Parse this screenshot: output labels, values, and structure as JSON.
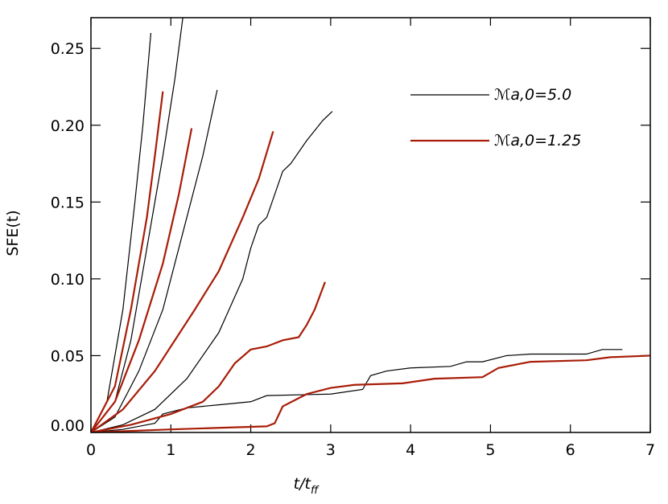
{
  "chart_data": {
    "type": "line",
    "xlabel": "t/t",
    "xlabel_sub": "ff",
    "ylabel": "SFE(t)",
    "xlim": [
      0,
      7
    ],
    "ylim": [
      0,
      0.27
    ],
    "xticks": [
      0,
      1,
      2,
      3,
      4,
      5,
      6,
      7
    ],
    "yticks": [
      {
        "value": 0,
        "label": "0.00"
      },
      {
        "value": 0.05,
        "label": "0.05"
      },
      {
        "value": 0.1,
        "label": "0.10"
      },
      {
        "value": 0.15,
        "label": "0.15"
      },
      {
        "value": 0.2,
        "label": "0.20"
      },
      {
        "value": 0.25,
        "label": "0.25"
      }
    ],
    "series": [
      {
        "name": "ℳa,0=5.0",
        "color": "#000000",
        "curves": [
          {
            "x": [
              0,
              0.2,
              0.4,
              0.55,
              0.65,
              0.75
            ],
            "values": [
              0,
              0.02,
              0.08,
              0.15,
              0.2,
              0.26
            ]
          },
          {
            "x": [
              0,
              0.3,
              0.5,
              0.7,
              0.9,
              1.05,
              1.15
            ],
            "values": [
              0,
              0.02,
              0.06,
              0.12,
              0.18,
              0.23,
              0.27
            ]
          },
          {
            "x": [
              0,
              0.3,
              0.6,
              0.9,
              1.2,
              1.4,
              1.58
            ],
            "values": [
              0,
              0.01,
              0.04,
              0.08,
              0.14,
              0.18,
              0.223
            ]
          },
          {
            "x": [
              0,
              0.4,
              0.8,
              1.2,
              1.6,
              1.9,
              2.0,
              2.1,
              2.2,
              2.4,
              2.5,
              2.7,
              2.9,
              3.02
            ],
            "values": [
              0,
              0.005,
              0.015,
              0.035,
              0.065,
              0.1,
              0.12,
              0.135,
              0.14,
              0.17,
              0.175,
              0.19,
              0.203,
              0.209
            ]
          },
          {
            "x": [
              0,
              0.4,
              0.8,
              0.9,
              1.2,
              1.6,
              2.0,
              2.2,
              3.0,
              3.4,
              3.5,
              3.7,
              4.0,
              4.5,
              4.7,
              4.9,
              5.2,
              5.5,
              6.2,
              6.4,
              6.65
            ],
            "values": [
              0,
              0.002,
              0.006,
              0.012,
              0.016,
              0.018,
              0.02,
              0.024,
              0.025,
              0.028,
              0.037,
              0.04,
              0.042,
              0.043,
              0.046,
              0.046,
              0.05,
              0.051,
              0.051,
              0.054,
              0.054
            ]
          }
        ]
      },
      {
        "name": "ℳa,0=1.25",
        "color": "#a81c07",
        "curves": [
          {
            "x": [
              0,
              0.3,
              0.5,
              0.7,
              0.8,
              0.9
            ],
            "values": [
              0,
              0.03,
              0.08,
              0.14,
              0.18,
              0.222
            ]
          },
          {
            "x": [
              0,
              0.3,
              0.6,
              0.9,
              1.1,
              1.26
            ],
            "values": [
              0,
              0.02,
              0.06,
              0.11,
              0.155,
              0.198
            ]
          },
          {
            "x": [
              0,
              0.4,
              0.8,
              1.3,
              1.6,
              1.9,
              2.1,
              2.28
            ],
            "values": [
              0,
              0.015,
              0.04,
              0.08,
              0.105,
              0.14,
              0.165,
              0.196
            ]
          },
          {
            "x": [
              0,
              0.5,
              1.0,
              1.4,
              1.6,
              1.8,
              2.0,
              2.2,
              2.4,
              2.6,
              2.7,
              2.8,
              2.93
            ],
            "values": [
              0,
              0.005,
              0.012,
              0.02,
              0.03,
              0.045,
              0.054,
              0.056,
              0.06,
              0.062,
              0.07,
              0.08,
              0.098
            ]
          },
          {
            "x": [
              0,
              1.0,
              1.6,
              2.2,
              2.3,
              2.4,
              2.7,
              3.0,
              3.3,
              3.9,
              4.3,
              4.9,
              5.1,
              5.5,
              6.2,
              6.5,
              7.0
            ],
            "values": [
              0,
              0.002,
              0.003,
              0.004,
              0.006,
              0.017,
              0.025,
              0.029,
              0.031,
              0.032,
              0.035,
              0.036,
              0.042,
              0.046,
              0.047,
              0.049,
              0.05
            ]
          }
        ]
      }
    ]
  }
}
